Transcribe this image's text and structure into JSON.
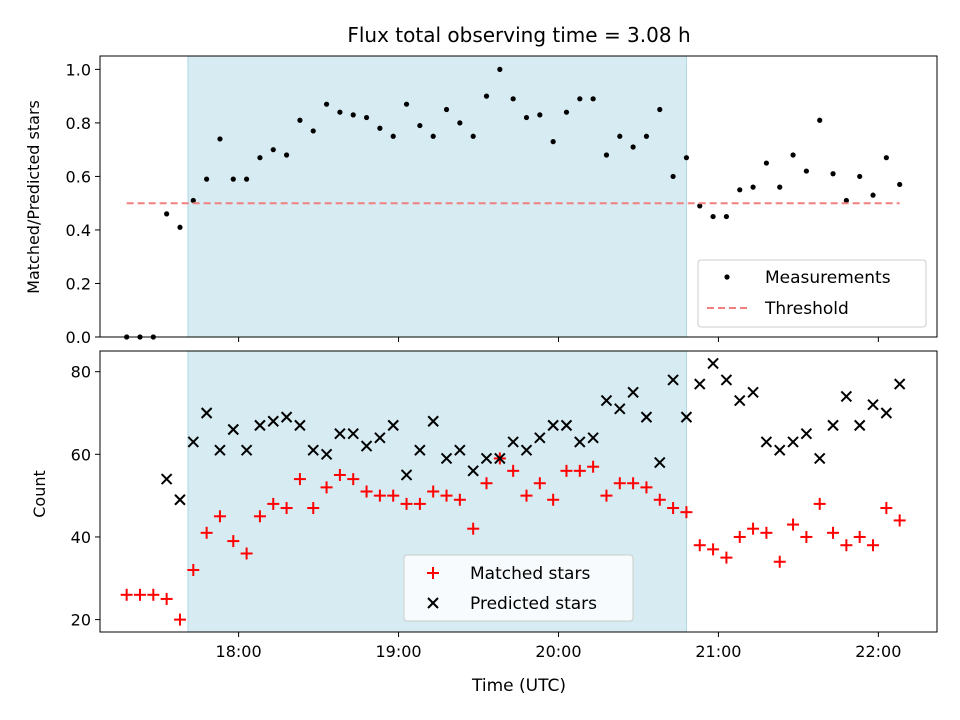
{
  "chart_data": [
    {
      "type": "scatter",
      "title": "Flux total observing time = 3.08 h",
      "ylabel": "Matched/Predicted stars",
      "xlabel": "",
      "ylim": [
        0,
        1.05
      ],
      "yticks": [
        0.0,
        0.2,
        0.4,
        0.6,
        0.8,
        1.0
      ],
      "ytick_labels": [
        "0.0",
        "0.2",
        "0.4",
        "0.6",
        "0.8",
        "1.0"
      ],
      "shaded_span": [
        "17:41",
        "20:48"
      ],
      "legend_position": "lower-right",
      "series": [
        {
          "name": "Measurements",
          "marker": "dot",
          "color": "#000000",
          "x": [
            "17:18",
            "17:23",
            "17:28",
            "17:33",
            "17:38",
            "17:43",
            "17:48",
            "17:53",
            "17:58",
            "18:03",
            "18:08",
            "18:13",
            "18:18",
            "18:23",
            "18:28",
            "18:33",
            "18:38",
            "18:43",
            "18:48",
            "18:53",
            "18:58",
            "19:03",
            "19:08",
            "19:13",
            "19:18",
            "19:23",
            "19:28",
            "19:33",
            "19:38",
            "19:43",
            "19:48",
            "19:53",
            "19:58",
            "20:03",
            "20:08",
            "20:13",
            "20:18",
            "20:23",
            "20:28",
            "20:33",
            "20:38",
            "20:43",
            "20:48",
            "20:53",
            "20:58",
            "21:03",
            "21:08",
            "21:13",
            "21:18",
            "21:23",
            "21:28",
            "21:33",
            "21:38",
            "21:43",
            "21:48",
            "21:53",
            "21:58",
            "22:03",
            "22:08"
          ],
          "values": [
            0.0,
            0.0,
            0.0,
            0.46,
            0.41,
            0.51,
            0.59,
            0.74,
            0.59,
            0.59,
            0.67,
            0.7,
            0.68,
            0.81,
            0.77,
            0.87,
            0.84,
            0.83,
            0.82,
            0.78,
            0.75,
            0.87,
            0.79,
            0.75,
            0.85,
            0.8,
            0.75,
            0.9,
            1.0,
            0.89,
            0.82,
            0.83,
            0.73,
            0.84,
            0.89,
            0.89,
            0.68,
            0.75,
            0.71,
            0.75,
            0.85,
            0.6,
            0.67,
            0.49,
            0.45,
            0.45,
            0.55,
            0.56,
            0.65,
            0.56,
            0.68,
            0.62,
            0.81,
            0.61,
            0.51,
            0.6,
            0.53,
            0.67,
            0.57
          ]
        },
        {
          "name": "Threshold",
          "marker": "dashed-line",
          "color": "#f08080",
          "x": [
            "17:18",
            "22:08"
          ],
          "values": [
            0.5,
            0.5
          ]
        }
      ]
    },
    {
      "type": "scatter",
      "title": "",
      "ylabel": "Count",
      "xlabel": "Time (UTC)",
      "ylim": [
        17,
        85
      ],
      "yticks": [
        20,
        40,
        60,
        80
      ],
      "ytick_labels": [
        "20",
        "40",
        "60",
        "80"
      ],
      "xticks": [
        "18:00",
        "19:00",
        "20:00",
        "21:00",
        "22:00"
      ],
      "xtick_labels": [
        "18:00",
        "19:00",
        "20:00",
        "21:00",
        "22:00"
      ],
      "shaded_span": [
        "17:41",
        "20:48"
      ],
      "legend_position": "lower-center",
      "series": [
        {
          "name": "Matched stars",
          "marker": "plus",
          "color": "#ff0000",
          "x": [
            "17:18",
            "17:23",
            "17:28",
            "17:33",
            "17:38",
            "17:43",
            "17:48",
            "17:53",
            "17:58",
            "18:03",
            "18:08",
            "18:13",
            "18:18",
            "18:23",
            "18:28",
            "18:33",
            "18:38",
            "18:43",
            "18:48",
            "18:53",
            "18:58",
            "19:03",
            "19:08",
            "19:13",
            "19:18",
            "19:23",
            "19:28",
            "19:33",
            "19:38",
            "19:43",
            "19:48",
            "19:53",
            "19:58",
            "20:03",
            "20:08",
            "20:13",
            "20:18",
            "20:23",
            "20:28",
            "20:33",
            "20:38",
            "20:43",
            "20:48",
            "20:53",
            "20:58",
            "21:03",
            "21:08",
            "21:13",
            "21:18",
            "21:23",
            "21:28",
            "21:33",
            "21:38",
            "21:43",
            "21:48",
            "21:53",
            "21:58",
            "22:03",
            "22:08"
          ],
          "values": [
            26,
            26,
            26,
            25,
            20,
            32,
            41,
            45,
            39,
            36,
            45,
            48,
            47,
            54,
            47,
            52,
            55,
            54,
            51,
            50,
            50,
            48,
            48,
            51,
            50,
            49,
            42,
            53,
            59,
            56,
            50,
            53,
            49,
            56,
            56,
            57,
            50,
            53,
            53,
            52,
            49,
            47,
            46,
            38,
            37,
            35,
            40,
            42,
            41,
            34,
            43,
            40,
            48,
            41,
            38,
            40,
            38,
            47,
            44
          ]
        },
        {
          "name": "Predicted stars",
          "marker": "x",
          "color": "#000000",
          "x": [
            "17:33",
            "17:38",
            "17:43",
            "17:48",
            "17:53",
            "17:58",
            "18:03",
            "18:08",
            "18:13",
            "18:18",
            "18:23",
            "18:28",
            "18:33",
            "18:38",
            "18:43",
            "18:48",
            "18:53",
            "18:58",
            "19:03",
            "19:08",
            "19:13",
            "19:18",
            "19:23",
            "19:28",
            "19:33",
            "19:38",
            "19:43",
            "19:48",
            "19:53",
            "19:58",
            "20:03",
            "20:08",
            "20:13",
            "20:18",
            "20:23",
            "20:28",
            "20:33",
            "20:38",
            "20:43",
            "20:48",
            "20:53",
            "20:58",
            "21:03",
            "21:08",
            "21:13",
            "21:18",
            "21:23",
            "21:28",
            "21:33",
            "21:38",
            "21:43",
            "21:48",
            "21:53",
            "21:58",
            "22:03",
            "22:08"
          ],
          "values": [
            54,
            49,
            63,
            70,
            61,
            66,
            61,
            67,
            68,
            69,
            67,
            61,
            60,
            65,
            65,
            62,
            64,
            67,
            55,
            61,
            68,
            59,
            61,
            56,
            59,
            59,
            63,
            61,
            64,
            67,
            67,
            63,
            64,
            73,
            71,
            75,
            69,
            58,
            78,
            69,
            77,
            82,
            78,
            73,
            75,
            63,
            61,
            63,
            65,
            59,
            67,
            74,
            67,
            72,
            70,
            77
          ]
        }
      ]
    }
  ]
}
